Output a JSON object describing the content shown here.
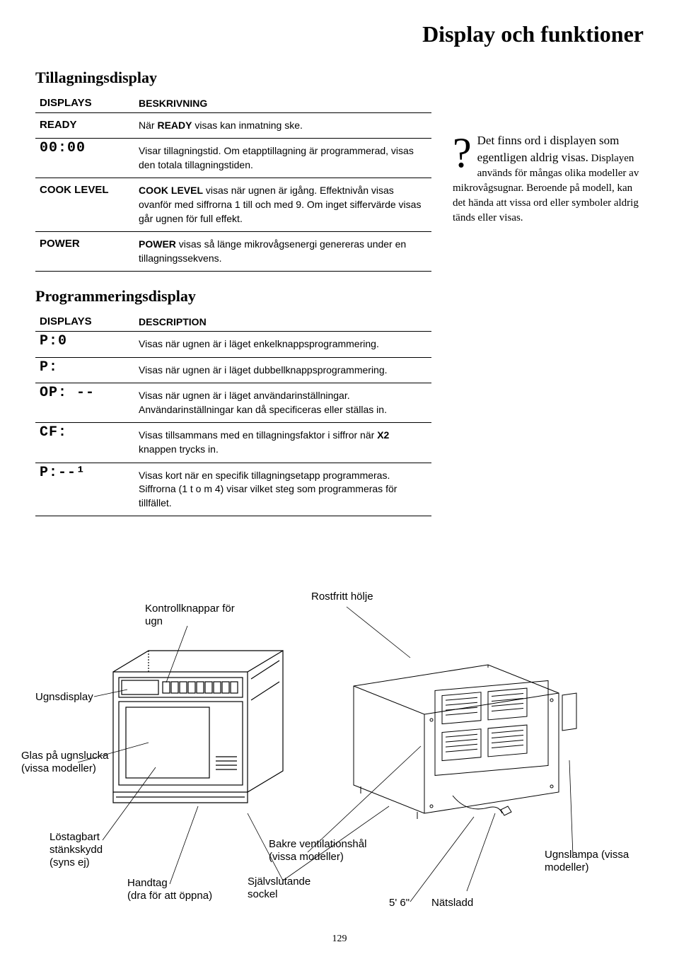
{
  "title": "Display och funktioner",
  "table1": {
    "section": "Tillagningsdisplay",
    "head_displays": "DISPLAYS",
    "head_desc": "BESKRIVNING",
    "rows": [
      {
        "disp": "READY",
        "big": false,
        "desc": "När READY visas kan inmatning ske."
      },
      {
        "disp": "00:00",
        "big": true,
        "desc": "Visar tillagningstid. Om etapptillagning är programmerad, visas den totala tillagningstiden."
      },
      {
        "disp": "COOK LEVEL",
        "big": false,
        "desc": "COOK LEVEL visas när ugnen är igång. Effektnivån visas ovanför med siffrorna 1 till och med 9. Om inget siffervärde visas går ugnen för full effekt."
      },
      {
        "disp": "POWER",
        "big": false,
        "desc": "POWER visas så länge mikrovågsenergi genereras under en tillagningssekvens."
      }
    ]
  },
  "table2": {
    "section": "Programmeringsdisplay",
    "head_displays": "DISPLAYS",
    "head_desc": "DESCRIPTION",
    "rows": [
      {
        "disp": "P:0",
        "desc": "Visas när ugnen är i läget enkelknappsprogrammering."
      },
      {
        "disp": "P:",
        "desc": "Visas när ugnen är i läget dubbellknappsprogrammering."
      },
      {
        "disp": "OP: --",
        "desc": "Visas när ugnen är i läget användarinställningar. Användarinställningar kan då specificeras eller ställas in."
      },
      {
        "disp": "CF:",
        "desc": "Visas tillsammans med en tillagningsfaktor i siffror när X2 knappen trycks in."
      },
      {
        "disp": "P:--¹",
        "desc": "Visas kort när en specifik tillagningsetapp programmeras. Siffrorna (1 t o m 4) visar vilket steg som programmeras för tillfället."
      }
    ]
  },
  "note": {
    "q": "?",
    "lead1": "Det finns ord i displayen som egentligen aldrig visas.",
    "body": "Displayen används för mångas olika modeller av mikrovågsugnar. Beroende på modell, kan det hända att vissa ord eller symboler aldrig tänds eller visas."
  },
  "labels": {
    "rostfritt": "Rostfritt hölje",
    "kontroll": "Kontrollknappar för ugn",
    "ugnsdisplay": "Ugnsdisplay",
    "glas": "Glas på ugnslucka (vissa modeller)",
    "lostagbart": "Löstagbart stänkskydd (syns ej)",
    "handtag": "Handtag\n(dra för att öppna)",
    "bakre": "Bakre ventilationshål (vissa modeller)",
    "sjalv": "Självslutande sockel",
    "5_6": "5' 6\"",
    "natsladd": "Nätsladd",
    "ugnslampa": "Ugnslampa (vissa modeller)"
  },
  "page_number": "129"
}
